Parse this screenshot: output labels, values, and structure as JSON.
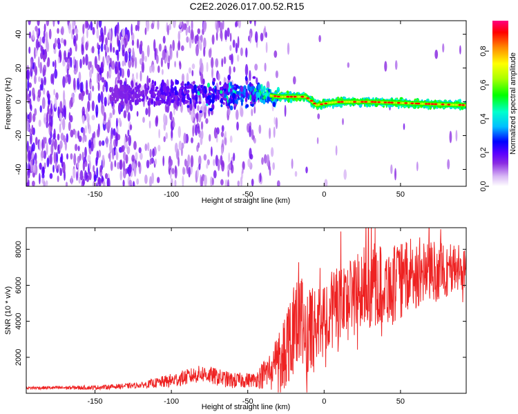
{
  "title": "C2E2.2026.017.00.52.R15",
  "colors": {
    "snr_line": "#ee2222",
    "colormap": [
      "#ffffff",
      "#d9b8f5",
      "#8a2be2",
      "#5a00ff",
      "#0000ff",
      "#00bfff",
      "#00ffcc",
      "#00ff00",
      "#aaff00",
      "#ffff00",
      "#ff8800",
      "#ff0000",
      "#ff0080"
    ]
  },
  "chart_data": [
    {
      "type": "heatmap",
      "name": "spectrogram",
      "xlabel": "Height of straight line (km)",
      "ylabel": "Frequency (Hz)",
      "xlim": [
        -195,
        93
      ],
      "ylim": [
        -50,
        48
      ],
      "xticks": [
        -150,
        -100,
        -50,
        0,
        50
      ],
      "yticks": [
        -40,
        -20,
        0,
        20,
        40
      ],
      "colorbar": {
        "label": "Normalized spectral amplitude",
        "range": [
          0.0,
          0.98
        ],
        "ticks": [
          0.0,
          0.2,
          0.4,
          0.6,
          0.8
        ]
      },
      "ridge": {
        "description_points": [
          [
            -45,
            5
          ],
          [
            -30,
            3
          ],
          [
            -12,
            3
          ],
          [
            -5,
            -2
          ],
          [
            0,
            -1
          ],
          [
            10,
            0
          ],
          [
            30,
            0
          ],
          [
            60,
            -1
          ],
          [
            93,
            -2
          ]
        ],
        "peak_amplitude_x_range": [
          -35,
          93
        ]
      }
    },
    {
      "type": "line",
      "name": "snr",
      "xlabel": "Height of straight line (km)",
      "ylabel": "SNR (10 * v/v)",
      "xlim": [
        -195,
        93
      ],
      "ylim": [
        0,
        9200
      ],
      "xticks": [
        -150,
        -100,
        -50,
        0,
        50
      ],
      "yticks": [
        2000,
        4000,
        6000,
        8000
      ],
      "envelope": [
        {
          "x": -195,
          "y": 300
        },
        {
          "x": -150,
          "y": 320
        },
        {
          "x": -120,
          "y": 450
        },
        {
          "x": -100,
          "y": 700
        },
        {
          "x": -80,
          "y": 1100
        },
        {
          "x": -60,
          "y": 700
        },
        {
          "x": -45,
          "y": 750
        },
        {
          "x": -35,
          "y": 1300
        },
        {
          "x": -25,
          "y": 2500
        },
        {
          "x": -18,
          "y": 4500
        },
        {
          "x": -10,
          "y": 3200
        },
        {
          "x": 0,
          "y": 4300
        },
        {
          "x": 10,
          "y": 4800
        },
        {
          "x": 20,
          "y": 5500
        },
        {
          "x": 30,
          "y": 6000
        },
        {
          "x": 45,
          "y": 6000
        },
        {
          "x": 60,
          "y": 6700
        },
        {
          "x": 75,
          "y": 6800
        },
        {
          "x": 93,
          "y": 7000
        }
      ],
      "noise_amplitude": [
        {
          "x": -195,
          "y": 80
        },
        {
          "x": -120,
          "y": 150
        },
        {
          "x": -100,
          "y": 400
        },
        {
          "x": -75,
          "y": 500
        },
        {
          "x": -45,
          "y": 400
        },
        {
          "x": -35,
          "y": 1200
        },
        {
          "x": -20,
          "y": 2800
        },
        {
          "x": 0,
          "y": 2200
        },
        {
          "x": 30,
          "y": 2400
        },
        {
          "x": 60,
          "y": 2000
        },
        {
          "x": 93,
          "y": 1300
        }
      ]
    }
  ]
}
